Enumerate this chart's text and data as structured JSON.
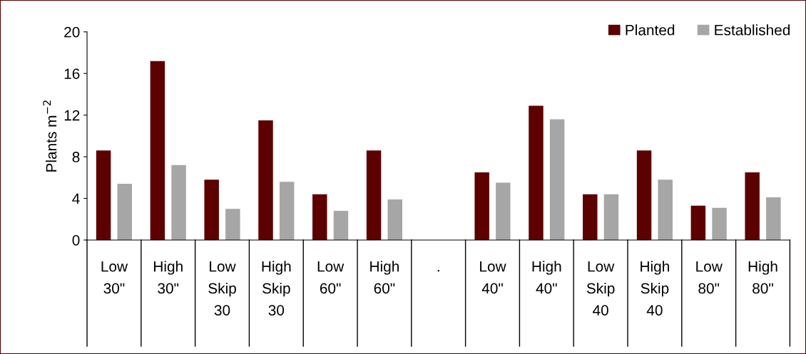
{
  "chart_data": {
    "type": "bar",
    "ylabel": "Plants m$^{−2}$",
    "categories": [
      "Low\n30\"",
      "High\n30\"",
      "Low\nSkip\n30",
      "High\nSkip\n30",
      "Low\n60\"",
      "High\n60\"",
      ".",
      "Low\n40\"",
      "High\n40\"",
      "Low\nSkip\n40",
      "High\nSkip\n40",
      "Low\n80\"",
      "High\n80\""
    ],
    "series": [
      {
        "name": "Planted",
        "color": "#5c0000",
        "values": [
          8.6,
          17.2,
          5.8,
          11.5,
          4.4,
          8.6,
          null,
          6.5,
          12.9,
          4.4,
          8.6,
          3.3,
          6.5
        ]
      },
      {
        "name": "Established",
        "color": "#a6a6a6",
        "values": [
          5.4,
          7.2,
          3.0,
          5.6,
          2.8,
          3.9,
          null,
          5.5,
          11.6,
          4.4,
          5.8,
          3.1,
          4.1
        ]
      }
    ],
    "ylim": [
      0,
      20
    ],
    "yticks": [
      0,
      4,
      8,
      12,
      16,
      20
    ],
    "grid": false,
    "legend": "top right"
  }
}
